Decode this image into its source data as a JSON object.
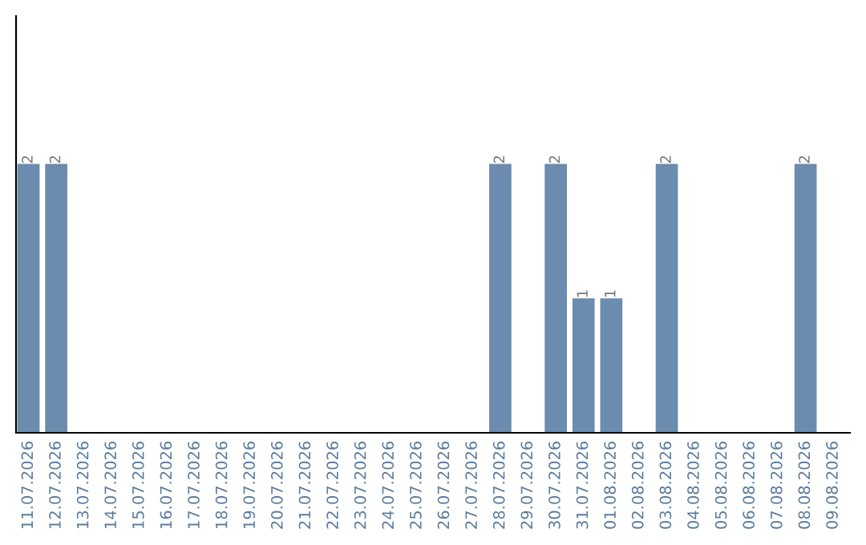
{
  "chart_data": {
    "type": "bar",
    "categories": [
      "11.07.2026",
      "12.07.2026",
      "13.07.2026",
      "14.07.2026",
      "15.07.2026",
      "16.07.2026",
      "17.07.2026",
      "18.07.2026",
      "19.07.2026",
      "20.07.2026",
      "21.07.2026",
      "22.07.2026",
      "23.07.2026",
      "24.07.2026",
      "25.07.2026",
      "26.07.2026",
      "27.07.2026",
      "28.07.2026",
      "29.07.2026",
      "30.07.2026",
      "31.07.2026",
      "01.08.2026",
      "02.08.2026",
      "03.08.2026",
      "04.08.2026",
      "05.08.2026",
      "06.08.2026",
      "07.08.2026",
      "08.08.2026",
      "09.08.2026"
    ],
    "values": [
      2,
      2,
      0,
      0,
      0,
      0,
      0,
      0,
      0,
      0,
      0,
      0,
      0,
      0,
      0,
      0,
      0,
      2,
      0,
      2,
      1,
      1,
      0,
      2,
      0,
      0,
      0,
      0,
      2,
      0
    ],
    "value_labels": [
      "2",
      "2",
      null,
      null,
      null,
      null,
      null,
      null,
      null,
      null,
      null,
      null,
      null,
      null,
      null,
      null,
      null,
      "2",
      null,
      "2",
      "1",
      "1",
      null,
      "2",
      null,
      null,
      null,
      null,
      "2",
      null
    ],
    "color": "#6b8cae",
    "ylim": [
      0,
      3.1
    ],
    "tick_labels": "x",
    "grid": false,
    "legend": false
  }
}
